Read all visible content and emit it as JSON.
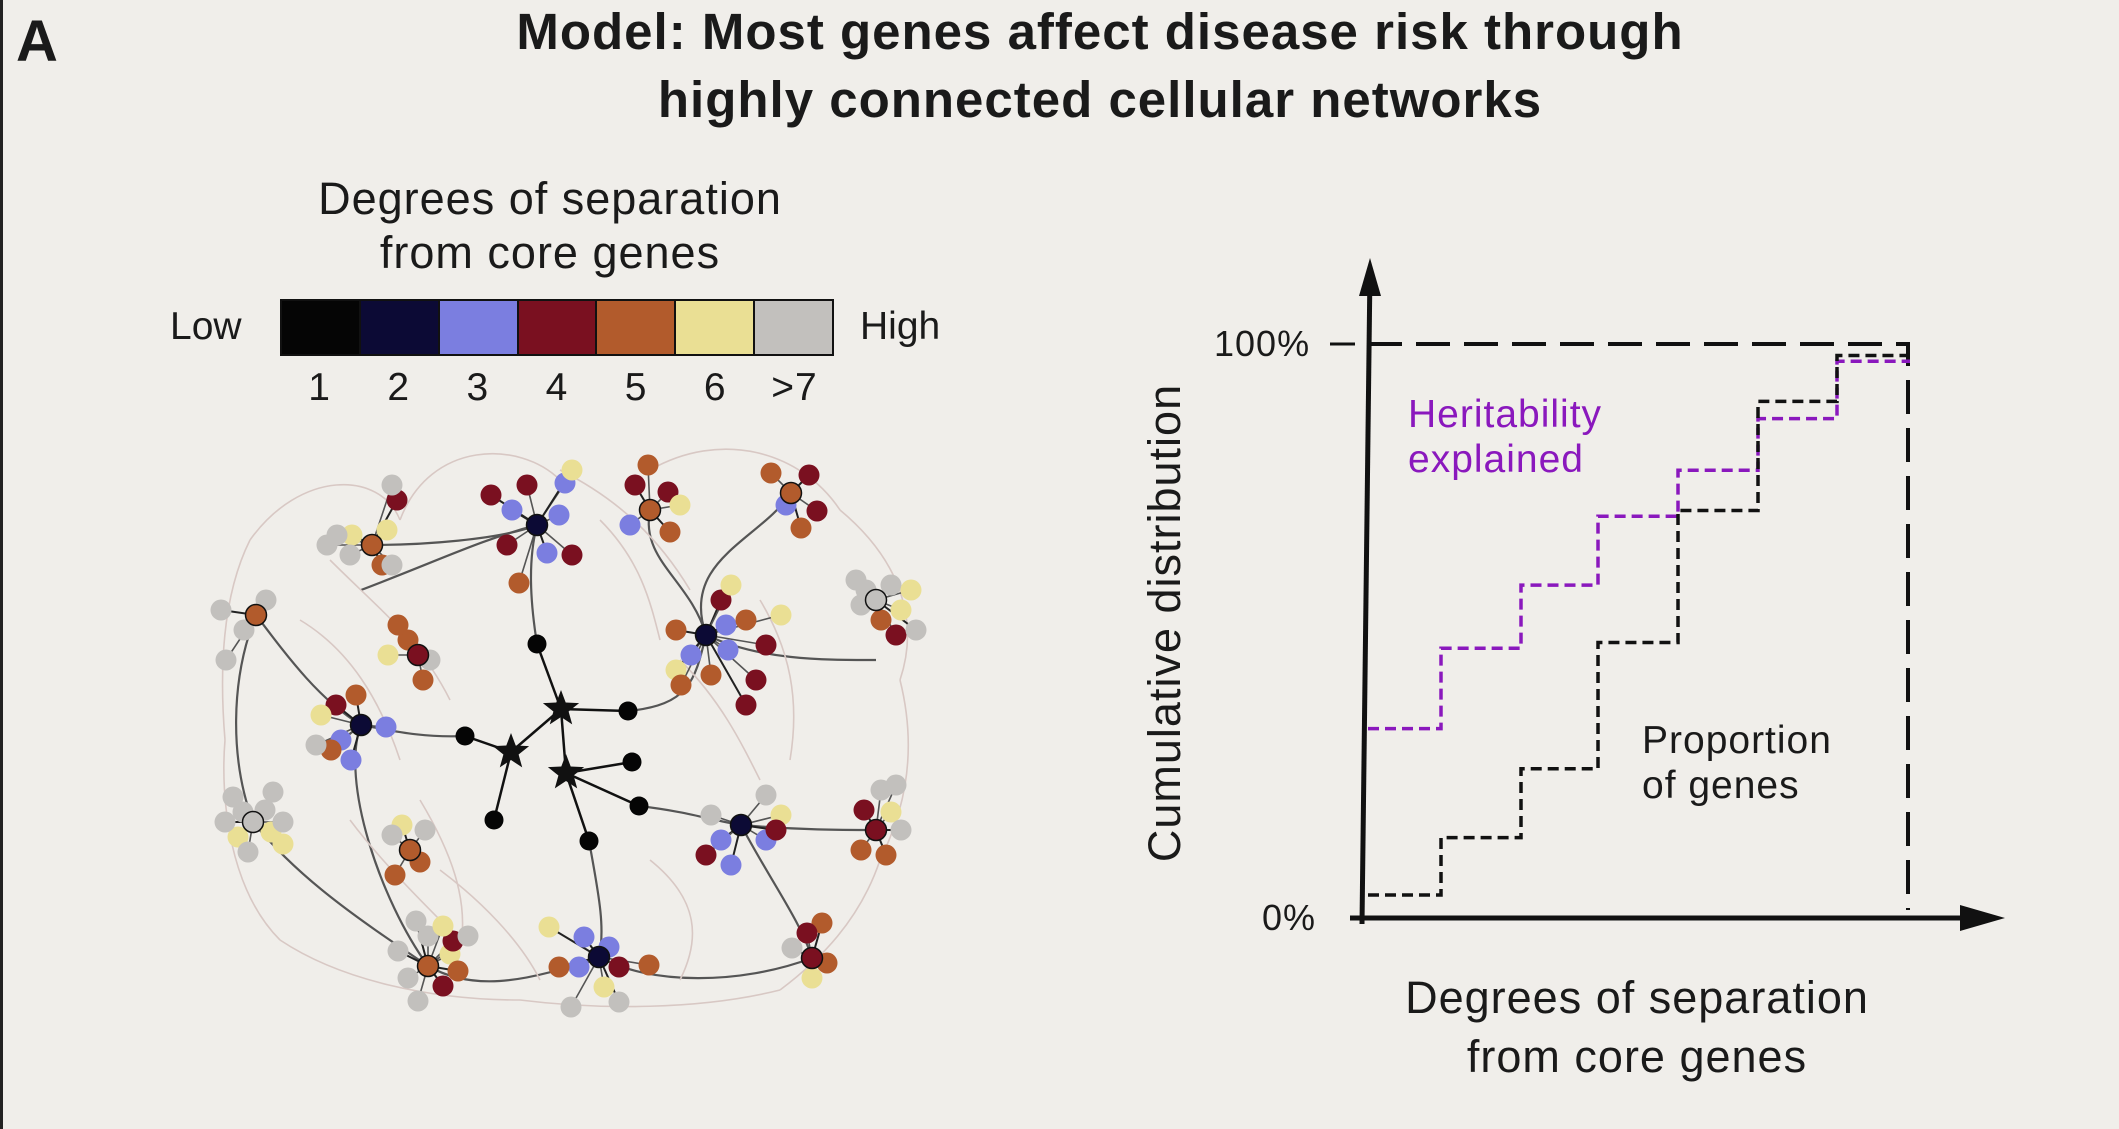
{
  "panel_letter": "A",
  "title": {
    "line1": "Model: Most genes affect disease risk through",
    "line2": "highly connected cellular networks"
  },
  "legend": {
    "title_line1": "Degrees of separation",
    "title_line2": "from core genes",
    "low_label": "Low",
    "high_label": "High",
    "categories": [
      "1",
      "2",
      "3",
      "4",
      "5",
      "6",
      ">7"
    ],
    "colors": [
      "#050505",
      "#0c0a35",
      "#7b7ee0",
      "#7a1020",
      "#b25b2c",
      "#eadf94",
      "#c2c0bd"
    ]
  },
  "chart_data": {
    "type": "line",
    "ylabel": "Cumulative distribution",
    "xlabel_line1": "Degrees of separation",
    "xlabel_line2": "from core genes",
    "yticks": [
      "100%",
      "0%"
    ],
    "ylim": [
      0,
      100
    ],
    "x_steps": [
      1,
      2,
      3,
      4,
      5,
      6,
      7
    ],
    "series": [
      {
        "name_line1": "Heritability",
        "name_line2": "explained",
        "color": "#8a18bd",
        "values": [
          33,
          47,
          58,
          70,
          78,
          87,
          97
        ]
      },
      {
        "name_line1": "Proportion",
        "name_line2": "of genes",
        "color": "#111111",
        "values": [
          4,
          14,
          26,
          48,
          71,
          90,
          98
        ]
      }
    ]
  }
}
